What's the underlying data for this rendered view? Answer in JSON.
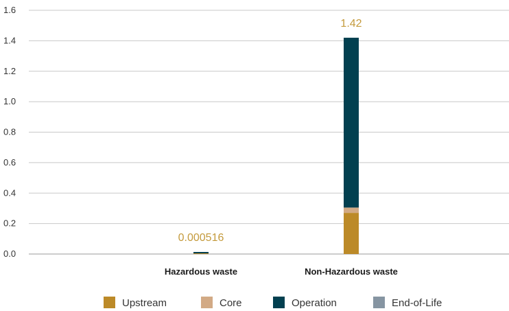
{
  "chart_data": {
    "type": "bar",
    "stacked": true,
    "categories": [
      "Hazardous waste",
      "Non-Hazardous waste"
    ],
    "series": [
      {
        "name": "Upstream",
        "color": "#BC8A28",
        "values": [
          0.0001,
          0.27
        ]
      },
      {
        "name": "Core",
        "color": "#D2AA85",
        "values": [
          1e-05,
          0.035
        ]
      },
      {
        "name": "Operation",
        "color": "#024050",
        "values": [
          0.0004,
          1.115
        ]
      },
      {
        "name": "End-of-Life",
        "color": "#8695A2",
        "values": [
          6e-06,
          0.0
        ]
      }
    ],
    "totals": [
      0.000516,
      1.42
    ],
    "total_labels": [
      "0.000516",
      "1.42"
    ],
    "total_label_color": "#C49A3C",
    "ylim": [
      0,
      1.6
    ],
    "yticks": [
      "0.0",
      "0.2",
      "0.4",
      "0.6",
      "0.8",
      "1.0",
      "1.2",
      "1.4",
      "1.6"
    ],
    "ytick_values": [
      0,
      0.2,
      0.4,
      0.6,
      0.8,
      1.0,
      1.2,
      1.4,
      1.6
    ],
    "grid": true,
    "legend_position": "bottom"
  }
}
